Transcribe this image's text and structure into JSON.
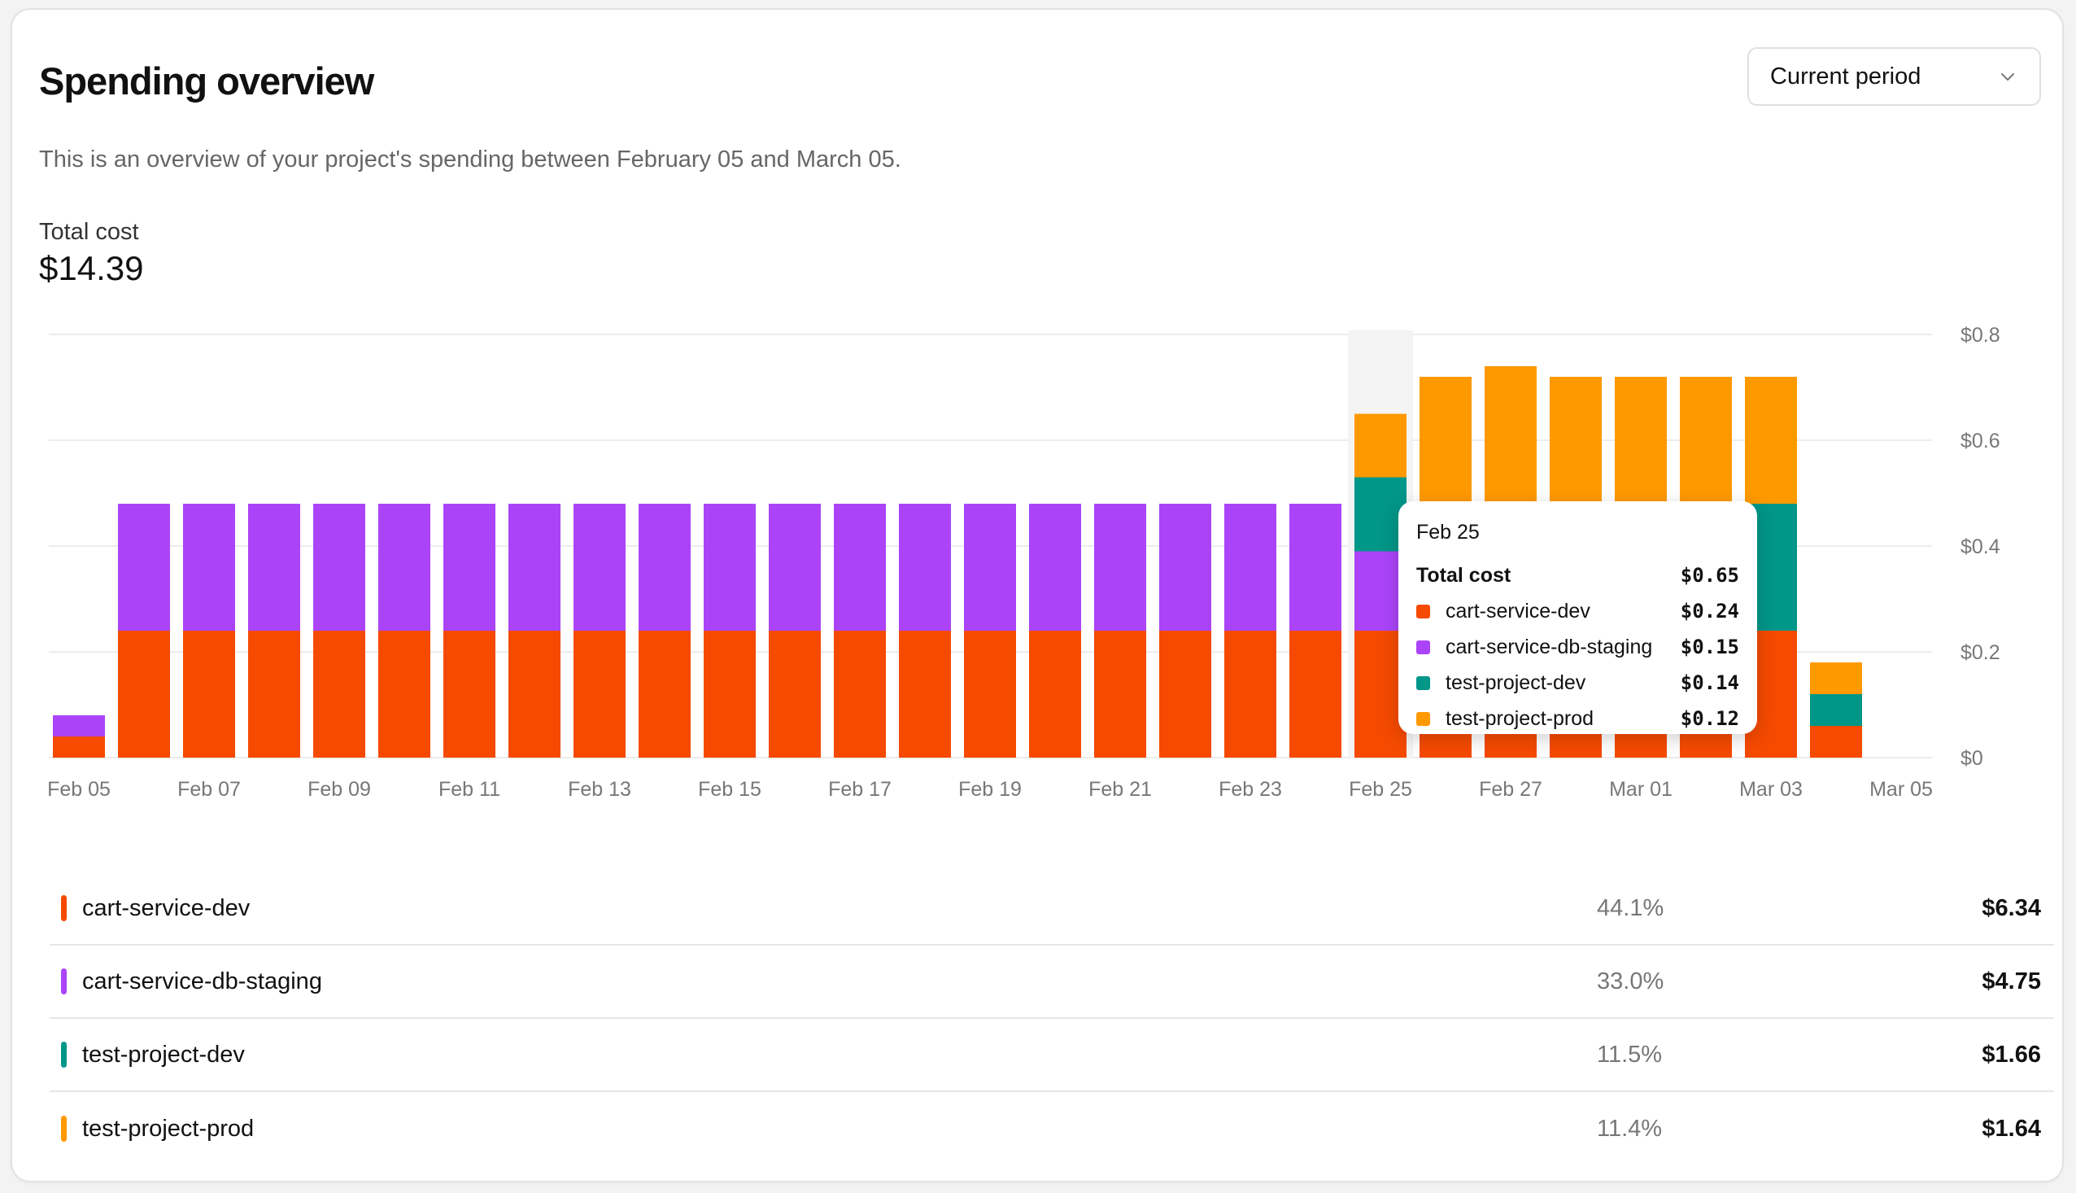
{
  "header": {
    "title": "Spending overview",
    "period_select": "Current period",
    "subtitle": "This is an overview of your project's spending between February 05 and March 05.",
    "total_label": "Total cost",
    "total_value": "$14.39"
  },
  "colors": {
    "cart-service-dev": "#f54a00",
    "cart-service-db-staging": "#ab44f8",
    "test-project-dev": "#009688",
    "test-project-prod": "#ff9900"
  },
  "chart_data": {
    "type": "bar",
    "stacked": true,
    "categories": [
      "Feb 05",
      "Feb 06",
      "Feb 07",
      "Feb 08",
      "Feb 09",
      "Feb 10",
      "Feb 11",
      "Feb 12",
      "Feb 13",
      "Feb 14",
      "Feb 15",
      "Feb 16",
      "Feb 17",
      "Feb 18",
      "Feb 19",
      "Feb 20",
      "Feb 21",
      "Feb 22",
      "Feb 23",
      "Feb 24",
      "Feb 25",
      "Feb 26",
      "Feb 27",
      "Feb 28",
      "Mar 01",
      "Mar 02",
      "Mar 03",
      "Mar 04",
      "Mar 05"
    ],
    "x_tick_labels": [
      "Feb 05",
      "Feb 07",
      "Feb 09",
      "Feb 11",
      "Feb 13",
      "Feb 15",
      "Feb 17",
      "Feb 19",
      "Feb 21",
      "Feb 23",
      "Feb 25",
      "Feb 27",
      "Mar 01",
      "Mar 03",
      "Mar 05"
    ],
    "y_tick_labels": [
      "$0",
      "$0.2",
      "$0.4",
      "$0.6",
      "$0.8"
    ],
    "ylim": [
      0,
      0.8
    ],
    "grid": true,
    "highlighted_category": "Feb 25",
    "series": [
      {
        "name": "cart-service-dev",
        "values": [
          0.04,
          0.24,
          0.24,
          0.24,
          0.24,
          0.24,
          0.24,
          0.24,
          0.24,
          0.24,
          0.24,
          0.24,
          0.24,
          0.24,
          0.24,
          0.24,
          0.24,
          0.24,
          0.24,
          0.24,
          0.24,
          0.24,
          0.24,
          0.24,
          0.24,
          0.24,
          0.24,
          0.06,
          0
        ]
      },
      {
        "name": "cart-service-db-staging",
        "values": [
          0.04,
          0.24,
          0.24,
          0.24,
          0.24,
          0.24,
          0.24,
          0.24,
          0.24,
          0.24,
          0.24,
          0.24,
          0.24,
          0.24,
          0.24,
          0.24,
          0.24,
          0.24,
          0.24,
          0.24,
          0.15,
          0,
          0,
          0,
          0,
          0,
          0,
          0,
          0
        ]
      },
      {
        "name": "test-project-dev",
        "values": [
          0,
          0,
          0,
          0,
          0,
          0,
          0,
          0,
          0,
          0,
          0,
          0,
          0,
          0,
          0,
          0,
          0,
          0,
          0,
          0,
          0.14,
          0.24,
          0.24,
          0.24,
          0.24,
          0.24,
          0.24,
          0.06,
          0
        ]
      },
      {
        "name": "test-project-prod",
        "values": [
          0,
          0,
          0,
          0,
          0,
          0,
          0,
          0,
          0,
          0,
          0,
          0,
          0,
          0,
          0,
          0,
          0,
          0,
          0,
          0,
          0.12,
          0.24,
          0.26,
          0.24,
          0.24,
          0.24,
          0.24,
          0.06,
          0
        ]
      }
    ]
  },
  "tooltip": {
    "date": "Feb 25",
    "total_label": "Total cost",
    "total_value": "$0.65",
    "rows": [
      {
        "name": "cart-service-dev",
        "value": "$0.24"
      },
      {
        "name": "cart-service-db-staging",
        "value": "$0.15"
      },
      {
        "name": "test-project-dev",
        "value": "$0.14"
      },
      {
        "name": "test-project-prod",
        "value": "$0.12"
      }
    ]
  },
  "legend": [
    {
      "name": "cart-service-dev",
      "percent": "44.1%",
      "amount": "$6.34"
    },
    {
      "name": "cart-service-db-staging",
      "percent": "33.0%",
      "amount": "$4.75"
    },
    {
      "name": "test-project-dev",
      "percent": "11.5%",
      "amount": "$1.66"
    },
    {
      "name": "test-project-prod",
      "percent": "11.4%",
      "amount": "$1.64"
    }
  ]
}
